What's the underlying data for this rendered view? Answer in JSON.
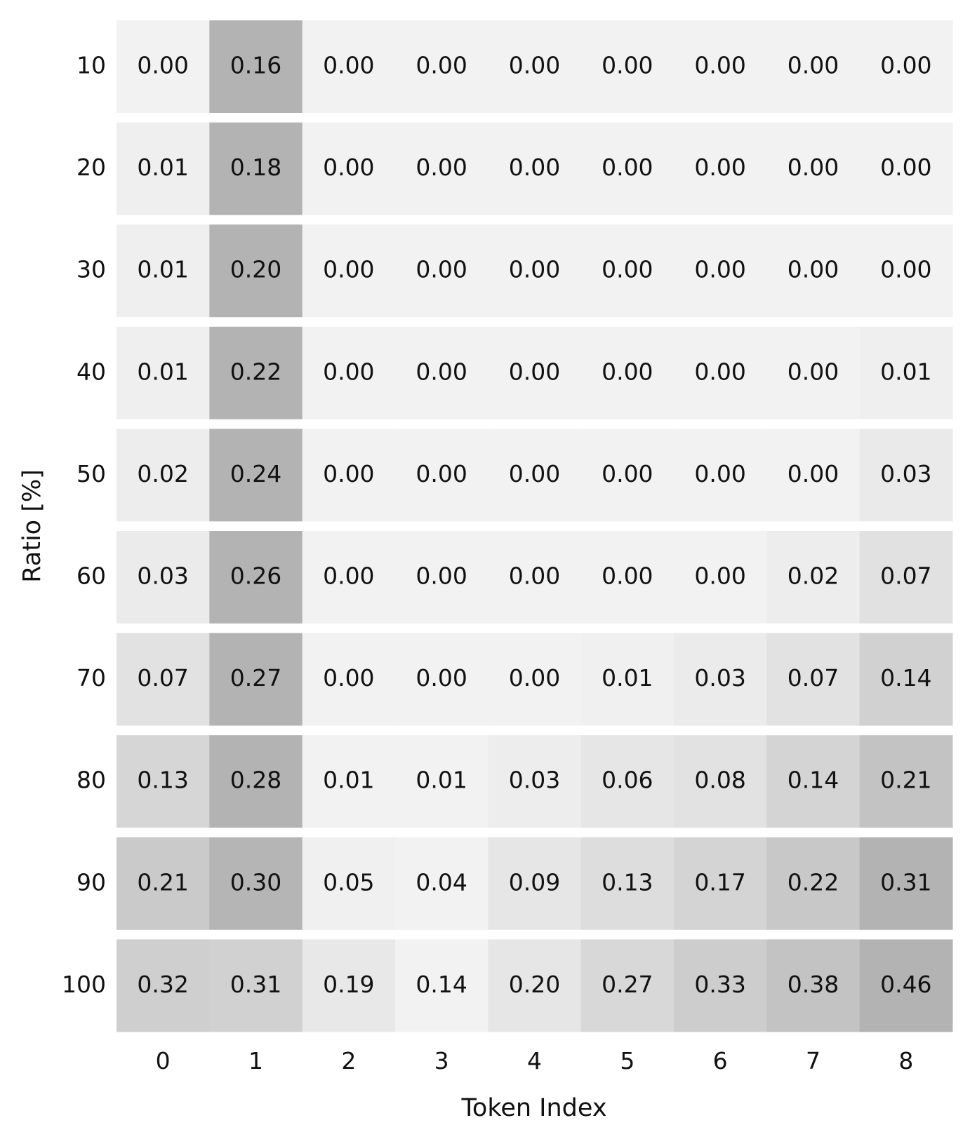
{
  "chart_data": {
    "type": "heatmap",
    "xlabel": "Token Index",
    "ylabel": "Ratio [%]",
    "x_categories": [
      0,
      1,
      2,
      3,
      4,
      5,
      6,
      7,
      8
    ],
    "y_categories": [
      10,
      20,
      30,
      40,
      50,
      60,
      70,
      80,
      90,
      100
    ],
    "values": [
      [
        0.0,
        0.16,
        0.0,
        0.0,
        0.0,
        0.0,
        0.0,
        0.0,
        0.0
      ],
      [
        0.01,
        0.18,
        0.0,
        0.0,
        0.0,
        0.0,
        0.0,
        0.0,
        0.0
      ],
      [
        0.01,
        0.2,
        0.0,
        0.0,
        0.0,
        0.0,
        0.0,
        0.0,
        0.0
      ],
      [
        0.01,
        0.22,
        0.0,
        0.0,
        0.0,
        0.0,
        0.0,
        0.0,
        0.01
      ],
      [
        0.02,
        0.24,
        0.0,
        0.0,
        0.0,
        0.0,
        0.0,
        0.0,
        0.03
      ],
      [
        0.03,
        0.26,
        0.0,
        0.0,
        0.0,
        0.0,
        0.0,
        0.02,
        0.07
      ],
      [
        0.07,
        0.27,
        0.0,
        0.0,
        0.0,
        0.01,
        0.03,
        0.07,
        0.14
      ],
      [
        0.13,
        0.28,
        0.01,
        0.01,
        0.03,
        0.06,
        0.08,
        0.14,
        0.21
      ],
      [
        0.21,
        0.3,
        0.05,
        0.04,
        0.09,
        0.13,
        0.17,
        0.22,
        0.31
      ],
      [
        0.32,
        0.31,
        0.19,
        0.14,
        0.2,
        0.27,
        0.33,
        0.38,
        0.46
      ]
    ],
    "value_labels": [
      [
        "0.00",
        "0.16",
        "0.00",
        "0.00",
        "0.00",
        "0.00",
        "0.00",
        "0.00",
        "0.00"
      ],
      [
        "0.01",
        "0.18",
        "0.00",
        "0.00",
        "0.00",
        "0.00",
        "0.00",
        "0.00",
        "0.00"
      ],
      [
        "0.01",
        "0.20",
        "0.00",
        "0.00",
        "0.00",
        "0.00",
        "0.00",
        "0.00",
        "0.00"
      ],
      [
        "0.01",
        "0.22",
        "0.00",
        "0.00",
        "0.00",
        "0.00",
        "0.00",
        "0.00",
        "0.01"
      ],
      [
        "0.02",
        "0.24",
        "0.00",
        "0.00",
        "0.00",
        "0.00",
        "0.00",
        "0.00",
        "0.03"
      ],
      [
        "0.03",
        "0.26",
        "0.00",
        "0.00",
        "0.00",
        "0.00",
        "0.00",
        "0.02",
        "0.07"
      ],
      [
        "0.07",
        "0.27",
        "0.00",
        "0.00",
        "0.00",
        "0.01",
        "0.03",
        "0.07",
        "0.14"
      ],
      [
        "0.13",
        "0.28",
        "0.01",
        "0.01",
        "0.03",
        "0.06",
        "0.08",
        "0.14",
        "0.21"
      ],
      [
        "0.21",
        "0.30",
        "0.05",
        "0.04",
        "0.09",
        "0.13",
        "0.17",
        "0.22",
        "0.31"
      ],
      [
        "0.32",
        "0.31",
        "0.19",
        "0.14",
        "0.20",
        "0.27",
        "0.33",
        "0.38",
        "0.46"
      ]
    ],
    "colormap": [
      "#f2f2f2",
      "#b3b3b3"
    ],
    "normalize": "row"
  }
}
